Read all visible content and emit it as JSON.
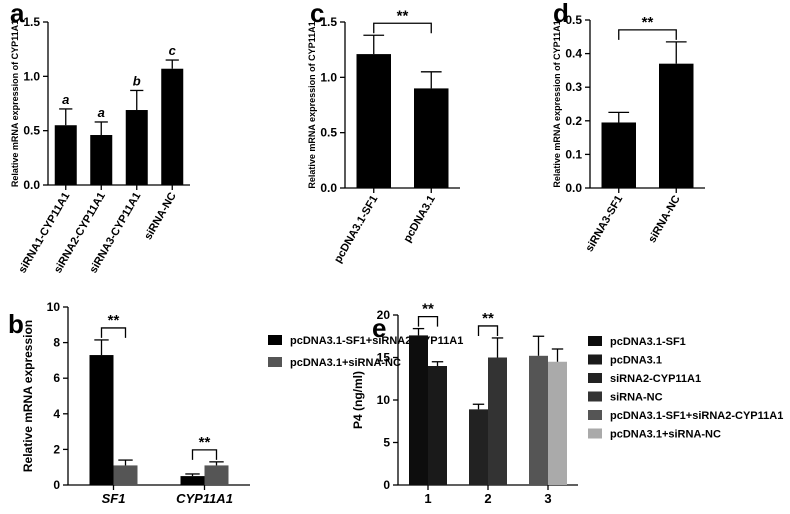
{
  "chart_data": [
    {
      "type": "bar",
      "panel": "a",
      "ylabel": "Relative mRNA expression of CYP11A1",
      "categories": [
        "siRNA1-CYP11A1",
        "siRNA2-CYP11A1",
        "siRNA3-CYP11A1",
        "siRNA-NC"
      ],
      "values": [
        0.55,
        0.46,
        0.69,
        1.07
      ],
      "errors": [
        0.15,
        0.12,
        0.18,
        0.08
      ],
      "annotations": [
        "a",
        "a",
        "b",
        "c"
      ],
      "color": "#000000",
      "ylim": [
        0,
        1.5
      ],
      "yticks": [
        {
          "value": 0,
          "label": "0.0"
        },
        0.5,
        {
          "value": 1,
          "label": "1.0"
        },
        1.5
      ]
    },
    {
      "type": "bar",
      "panel": "c",
      "ylabel": "Relative mRNA expression of CYP11A1",
      "categories": [
        "pcDNA3.1-SF1",
        "pcDNA3.1"
      ],
      "values": [
        1.21,
        0.9
      ],
      "errors": [
        0.17,
        0.15
      ],
      "significance": [
        "**"
      ],
      "color": "#000000",
      "ylim": [
        0,
        1.5
      ],
      "yticks": [
        {
          "value": 0,
          "label": "0.0"
        },
        0.5,
        {
          "value": 1,
          "label": "1.0"
        },
        1.5
      ]
    },
    {
      "type": "bar",
      "panel": "d",
      "ylabel": "Relative mRNA expression of CYP11A1",
      "categories": [
        "siRNA3-SF1",
        "siRNA-NC"
      ],
      "values": [
        0.195,
        0.37
      ],
      "errors": [
        0.03,
        0.065
      ],
      "significance": [
        "**"
      ],
      "color": "#000000",
      "ylim": [
        0,
        0.5
      ],
      "yticks": [
        {
          "value": 0,
          "label": "0.0"
        },
        0.1,
        0.2,
        0.3,
        0.4,
        0.5
      ]
    },
    {
      "type": "grouped_bar",
      "panel": "b",
      "ylabel": "Relative mRNA expression",
      "categories": [
        "SF1",
        "CYP11A1"
      ],
      "series": [
        {
          "name": "pcDNA3.1-SF1+siRNA2-CYP11A1",
          "color": "#000000",
          "values": [
            7.3,
            0.5
          ],
          "errors": [
            0.85,
            0.12
          ]
        },
        {
          "name": "pcDNA3.1+siRNA-NC",
          "color": "#555555",
          "values": [
            1.1,
            1.1
          ],
          "errors": [
            0.3,
            0.2
          ]
        }
      ],
      "significance": [
        "**",
        "**"
      ],
      "legend": "right",
      "ylim": [
        0,
        10
      ],
      "yticks": [
        0,
        2,
        4,
        6,
        8,
        10
      ]
    },
    {
      "type": "grouped_bar",
      "panel": "e",
      "ylabel": "P4 (ng/ml)",
      "categories": [
        "1",
        "2",
        "3"
      ],
      "series": [
        {
          "name": "pcDNA3.1-SF1",
          "color": "#0d0d0d",
          "values": [
            17.6,
            null,
            null
          ],
          "errors": [
            0.8,
            null,
            null
          ]
        },
        {
          "name": "pcDNA3.1",
          "color": "#1a1a1a",
          "values": [
            14.0,
            null,
            null
          ],
          "errors": [
            0.5,
            null,
            null
          ]
        },
        {
          "name": "siRNA2-CYP11A1",
          "color": "#222222",
          "values": [
            null,
            8.9,
            null
          ],
          "errors": [
            null,
            0.6,
            null
          ]
        },
        {
          "name": "siRNA-NC",
          "color": "#333333",
          "values": [
            null,
            15.0,
            null
          ],
          "errors": [
            null,
            2.3,
            null
          ]
        },
        {
          "name": "pcDNA3.1-SF1+siRNA2-CYP11A1",
          "color": "#555555",
          "values": [
            null,
            null,
            15.2
          ],
          "errors": [
            null,
            null,
            2.3
          ]
        },
        {
          "name": "pcDNA3.1+siRNA-NC",
          "color": "#aaaaaa",
          "values": [
            null,
            null,
            14.5
          ],
          "errors": [
            null,
            null,
            1.5
          ]
        }
      ],
      "significance": [
        "**",
        "**"
      ],
      "legend": "right",
      "ylim": [
        0,
        20
      ],
      "yticks": [
        0,
        5,
        10,
        15,
        20
      ]
    }
  ]
}
